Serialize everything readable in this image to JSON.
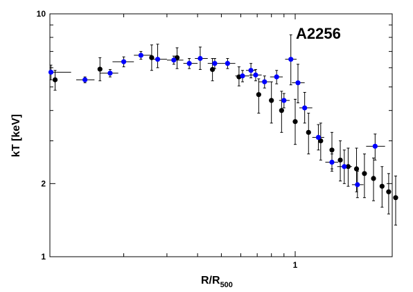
{
  "chart_data": {
    "type": "scatter",
    "title": "A2256",
    "xlabel": "R/R",
    "xlabel_sub": "500",
    "ylabel": "kT [keV]",
    "x_scale": "log",
    "y_scale": "log",
    "xlim": [
      0.1,
      2.0
    ],
    "ylim": [
      1,
      10
    ],
    "x_tick_labels": [
      {
        "value": 1,
        "label": "1"
      }
    ],
    "y_tick_labels": [
      {
        "value": 1,
        "label": "1"
      },
      {
        "value": 2,
        "label": "2"
      },
      {
        "value": 10,
        "label": "10"
      }
    ],
    "grid": false,
    "series": [
      {
        "color": "#000000",
        "points": [
          {
            "x": 0.105,
            "y": 5.35,
            "ylo": 4.85,
            "yhi": 5.85
          },
          {
            "x": 0.16,
            "y": 5.92,
            "ylo": 5.3,
            "yhi": 6.6
          },
          {
            "x": 0.26,
            "y": 6.6,
            "ylo": 5.85,
            "yhi": 7.45
          },
          {
            "x": 0.33,
            "y": 6.6,
            "ylo": 5.95,
            "yhi": 7.25
          },
          {
            "x": 0.46,
            "y": 5.9,
            "ylo": 5.3,
            "yhi": 6.55
          },
          {
            "x": 0.59,
            "y": 5.5,
            "ylo": 5.05,
            "yhi": 6.05
          },
          {
            "x": 0.71,
            "y": 4.65,
            "ylo": 3.9,
            "yhi": 5.4
          },
          {
            "x": 0.8,
            "y": 4.4,
            "ylo": 3.55,
            "yhi": 5.25
          },
          {
            "x": 0.88,
            "y": 4.0,
            "ylo": 3.25,
            "yhi": 4.8
          },
          {
            "x": 1.0,
            "y": 3.6,
            "ylo": 2.9,
            "yhi": 4.45
          },
          {
            "x": 1.1,
            "y": 3.25,
            "ylo": 2.65,
            "yhi": 3.9
          },
          {
            "x": 1.2,
            "y": 3.0,
            "ylo": 2.5,
            "yhi": 3.55
          },
          {
            "x": 1.3,
            "y": 2.75,
            "ylo": 2.3,
            "yhi": 3.25
          },
          {
            "x": 1.38,
            "y": 2.5,
            "ylo": 2.05,
            "yhi": 3.0
          },
          {
            "x": 1.46,
            "y": 2.35,
            "ylo": 1.95,
            "yhi": 2.8
          },
          {
            "x": 1.55,
            "y": 2.3,
            "ylo": 1.85,
            "yhi": 2.8
          },
          {
            "x": 1.64,
            "y": 2.2,
            "ylo": 1.75,
            "yhi": 2.65
          },
          {
            "x": 1.75,
            "y": 2.1,
            "ylo": 1.7,
            "yhi": 2.55
          },
          {
            "x": 1.86,
            "y": 1.95,
            "ylo": 1.6,
            "yhi": 2.35
          },
          {
            "x": 1.95,
            "y": 1.85,
            "ylo": 1.5,
            "yhi": 2.2
          },
          {
            "x": 2.05,
            "y": 1.75,
            "ylo": 1.35,
            "yhi": 2.15
          }
        ]
      },
      {
        "color": "#0000ff",
        "points": [
          {
            "x": 0.101,
            "y": 5.75,
            "ylo": 5.35,
            "yhi": 6.15,
            "xlo": 0.092,
            "xhi": 0.122
          },
          {
            "x": 0.139,
            "y": 5.35,
            "ylo": 5.2,
            "yhi": 5.5,
            "xlo": 0.128,
            "xhi": 0.152
          },
          {
            "x": 0.176,
            "y": 5.7,
            "ylo": 5.5,
            "yhi": 5.9,
            "xlo": 0.16,
            "xhi": 0.19
          },
          {
            "x": 0.2,
            "y": 6.35,
            "ylo": 6.05,
            "yhi": 6.65,
            "xlo": 0.18,
            "xhi": 0.22
          },
          {
            "x": 0.235,
            "y": 6.75,
            "ylo": 6.5,
            "yhi": 7.0,
            "xlo": 0.22,
            "xhi": 0.26
          },
          {
            "x": 0.275,
            "y": 6.5,
            "ylo": 6.0,
            "yhi": 7.5,
            "xlo": 0.26,
            "xhi": 0.3
          },
          {
            "x": 0.32,
            "y": 6.45,
            "ylo": 6.2,
            "yhi": 6.7,
            "xlo": 0.3,
            "xhi": 0.35
          },
          {
            "x": 0.37,
            "y": 6.25,
            "ylo": 5.95,
            "yhi": 6.55,
            "xlo": 0.35,
            "xhi": 0.4
          },
          {
            "x": 0.41,
            "y": 6.55,
            "ylo": 5.9,
            "yhi": 7.3,
            "xlo": 0.39,
            "xhi": 0.44
          },
          {
            "x": 0.47,
            "y": 6.25,
            "ylo": 5.95,
            "yhi": 6.55,
            "xlo": 0.44,
            "xhi": 0.5
          },
          {
            "x": 0.53,
            "y": 6.25,
            "ylo": 5.95,
            "yhi": 6.55,
            "xlo": 0.5,
            "xhi": 0.57
          },
          {
            "x": 0.61,
            "y": 5.55,
            "ylo": 5.25,
            "yhi": 5.85,
            "xlo": 0.57,
            "xhi": 0.65
          },
          {
            "x": 0.69,
            "y": 5.6,
            "ylo": 5.3,
            "yhi": 5.9,
            "xlo": 0.65,
            "xhi": 0.73
          },
          {
            "x": 0.66,
            "y": 5.85,
            "ylo": 5.45,
            "yhi": 6.25,
            "xlo": 0.63,
            "xhi": 0.69
          },
          {
            "x": 0.75,
            "y": 5.25,
            "ylo": 4.95,
            "yhi": 5.55,
            "xlo": 0.71,
            "xhi": 0.79
          },
          {
            "x": 0.84,
            "y": 5.5,
            "ylo": 5.15,
            "yhi": 5.85,
            "xlo": 0.79,
            "xhi": 0.89
          },
          {
            "x": 0.96,
            "y": 6.5,
            "ylo": 5.1,
            "yhi": 8.2,
            "xlo": 0.91,
            "xhi": 1.01
          },
          {
            "x": 0.9,
            "y": 4.4,
            "ylo": 4.1,
            "yhi": 4.7,
            "xlo": 0.86,
            "xhi": 0.95
          },
          {
            "x": 1.02,
            "y": 5.2,
            "ylo": 4.3,
            "yhi": 6.2,
            "xlo": 0.97,
            "xhi": 1.07
          },
          {
            "x": 1.07,
            "y": 4.1,
            "ylo": 3.55,
            "yhi": 4.75,
            "xlo": 1.03,
            "xhi": 1.13
          },
          {
            "x": 1.18,
            "y": 3.1,
            "ylo": 2.75,
            "yhi": 3.5,
            "xlo": 1.13,
            "xhi": 1.23
          },
          {
            "x": 1.3,
            "y": 2.45,
            "ylo": 2.25,
            "yhi": 2.65,
            "xlo": 1.24,
            "xhi": 1.36
          },
          {
            "x": 1.42,
            "y": 2.35,
            "ylo": 2.0,
            "yhi": 2.75,
            "xlo": 1.35,
            "xhi": 1.5
          },
          {
            "x": 1.56,
            "y": 1.98,
            "ylo": 1.75,
            "yhi": 2.25,
            "xlo": 1.5,
            "xhi": 1.63
          },
          {
            "x": 1.77,
            "y": 2.85,
            "ylo": 2.5,
            "yhi": 3.2,
            "xlo": 1.66,
            "xhi": 1.9
          }
        ]
      }
    ]
  }
}
